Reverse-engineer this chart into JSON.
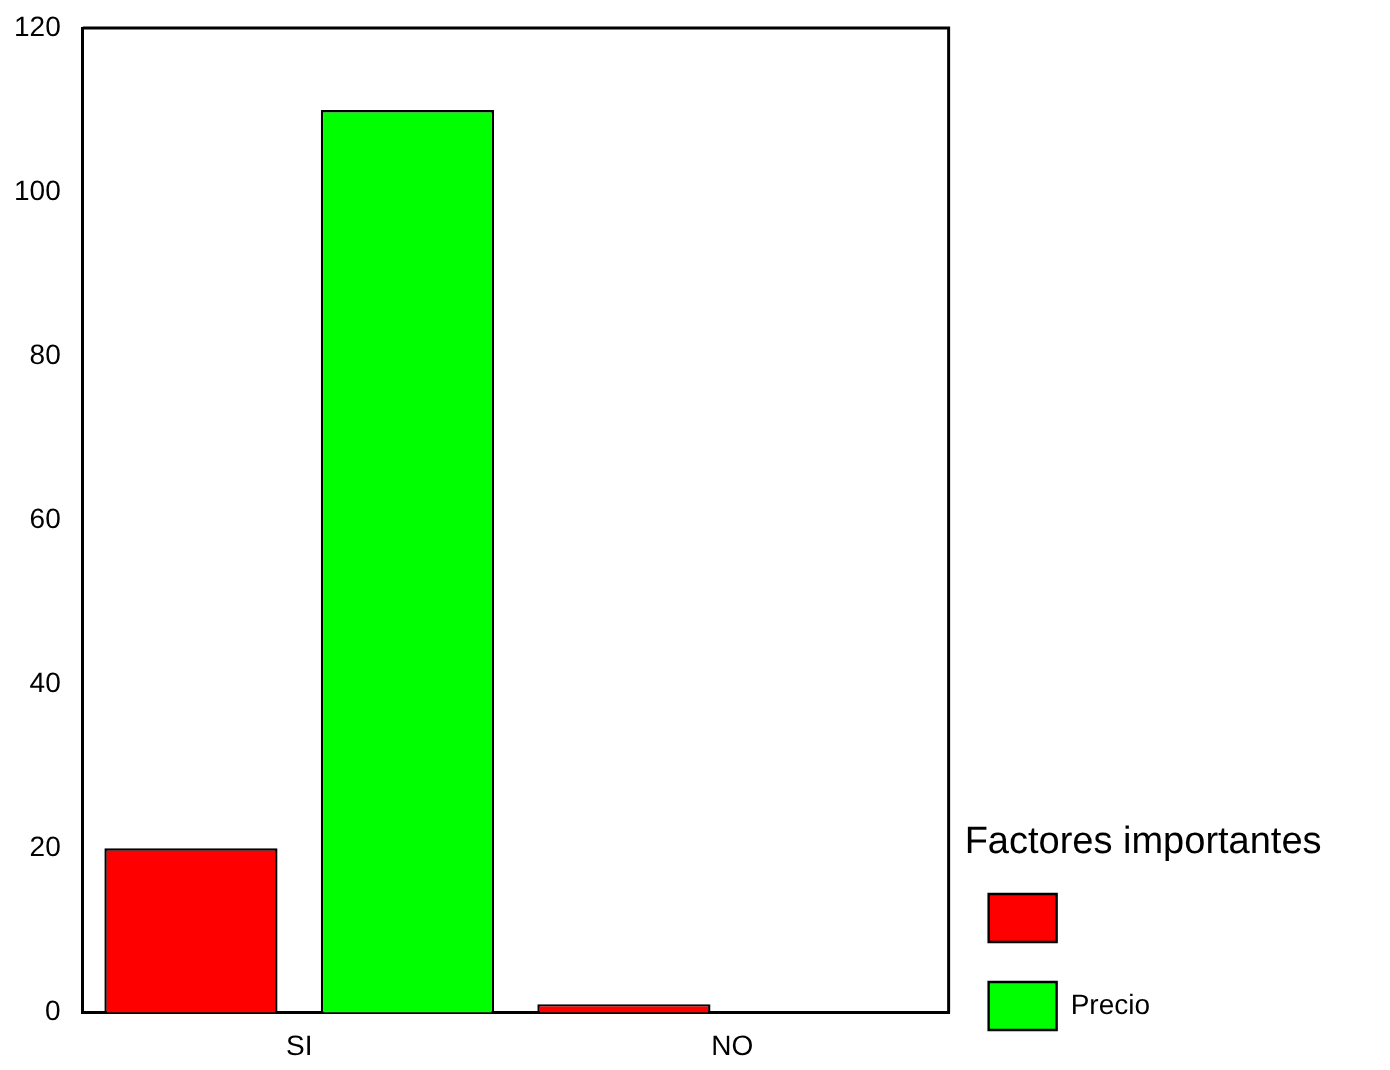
{
  "chart_data": {
    "type": "bar",
    "categories": [
      "SI",
      "NO"
    ],
    "series": [
      {
        "color": "#ff0000",
        "values": [
          20,
          1
        ]
      },
      {
        "name": "Precio",
        "color": "#00ff00",
        "values": [
          110,
          null
        ]
      }
    ],
    "legend_title": "Factores importantes",
    "legend": "bottom right",
    "ylim": [
      0,
      120
    ],
    "yticks": [
      0,
      20,
      40,
      60,
      80,
      100,
      120
    ],
    "grid": false
  }
}
